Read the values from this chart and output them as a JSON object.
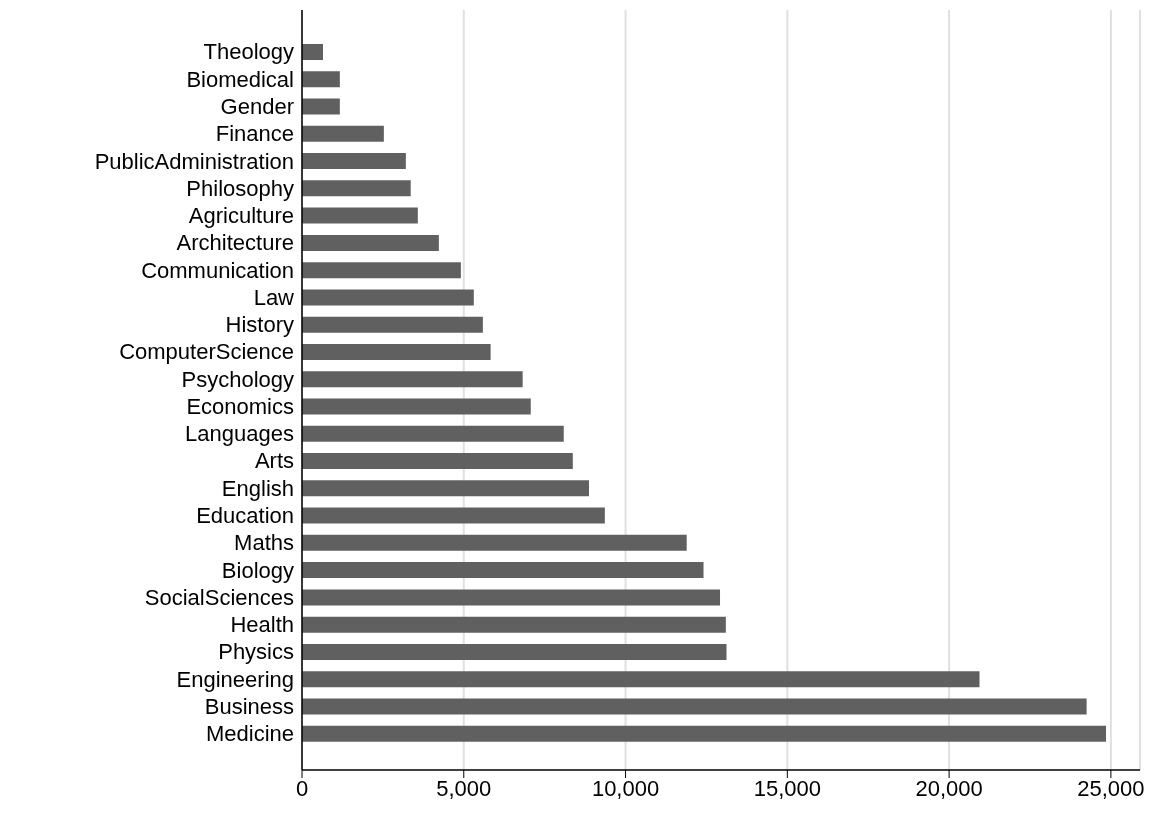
{
  "chart_data": {
    "type": "bar",
    "orientation": "horizontal",
    "categories": [
      "Theology",
      "Biomedical",
      "Gender",
      "Finance",
      "PublicAdministration",
      "Philosophy",
      "Agriculture",
      "Architecture",
      "Communication",
      "Law",
      "History",
      "ComputerScience",
      "Psychology",
      "Economics",
      "Languages",
      "Arts",
      "English",
      "Education",
      "Maths",
      "Biology",
      "SocialSciences",
      "Health",
      "Physics",
      "Engineering",
      "Business",
      "Medicine"
    ],
    "values": [
      650,
      1170,
      1170,
      2530,
      3210,
      3360,
      3580,
      4230,
      4910,
      5310,
      5590,
      5830,
      6820,
      7070,
      8090,
      8370,
      8870,
      9360,
      11890,
      12410,
      12920,
      13100,
      13120,
      20940,
      24250,
      24850
    ],
    "color": "#606060",
    "xlim": [
      0,
      25900
    ],
    "xticks": [
      {
        "value": 0,
        "label": "0"
      },
      {
        "value": 5000,
        "label": "5,000"
      },
      {
        "value": 10000,
        "label": "10,000"
      },
      {
        "value": 15000,
        "label": "15,000"
      },
      {
        "value": 20000,
        "label": "20,000"
      },
      {
        "value": 25000,
        "label": "25,000"
      }
    ],
    "grid": "x"
  }
}
